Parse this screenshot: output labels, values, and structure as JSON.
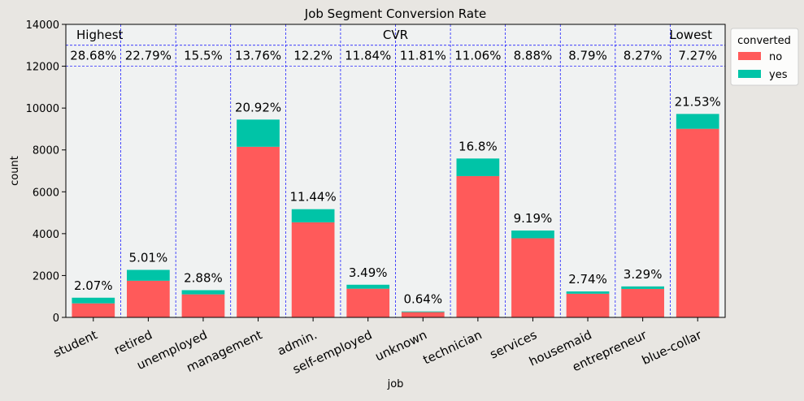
{
  "chart_data": {
    "type": "bar",
    "stacked": true,
    "title": "Job Segment Conversion Rate",
    "xlabel": "job",
    "ylabel": "count",
    "ylim": [
      0,
      14000
    ],
    "yticks": [
      0,
      2000,
      4000,
      6000,
      8000,
      10000,
      12000,
      14000
    ],
    "categories": [
      "student",
      "retired",
      "unemployed",
      "management",
      "admin.",
      "self-employed",
      "unknown",
      "technician",
      "services",
      "housemaid",
      "entrepreneur",
      "blue-collar"
    ],
    "series": [
      {
        "name": "no",
        "color": "#ff5a5a",
        "values": [
          670,
          1750,
          1100,
          8150,
          4540,
          1370,
          250,
          6750,
          3780,
          1130,
          1360,
          9010
        ]
      },
      {
        "name": "yes",
        "color": "#00c4a7",
        "values": [
          270,
          520,
          200,
          1300,
          630,
          190,
          34,
          840,
          370,
          110,
          120,
          710
        ]
      }
    ],
    "share_labels": [
      "2.07%",
      "5.01%",
      "2.88%",
      "20.92%",
      "11.44%",
      "3.49%",
      "0.64%",
      "16.8%",
      "9.19%",
      "2.74%",
      "3.29%",
      "21.53%"
    ],
    "cvr_labels": [
      "28.68%",
      "22.79%",
      "15.5%",
      "13.76%",
      "12.2%",
      "11.84%",
      "11.81%",
      "11.06%",
      "8.88%",
      "8.79%",
      "8.27%",
      "7.27%"
    ],
    "band": {
      "title": "CVR",
      "left_label": "Highest",
      "right_label": "Lowest",
      "range": [
        12000,
        13000
      ]
    },
    "legend": {
      "title": "converted",
      "placement": "outside-top-right"
    },
    "grid": false,
    "colors": {
      "figure_bg": "#e8e6e2",
      "plot_bg": "#f0f2f2",
      "divider": "#0000ff"
    }
  }
}
